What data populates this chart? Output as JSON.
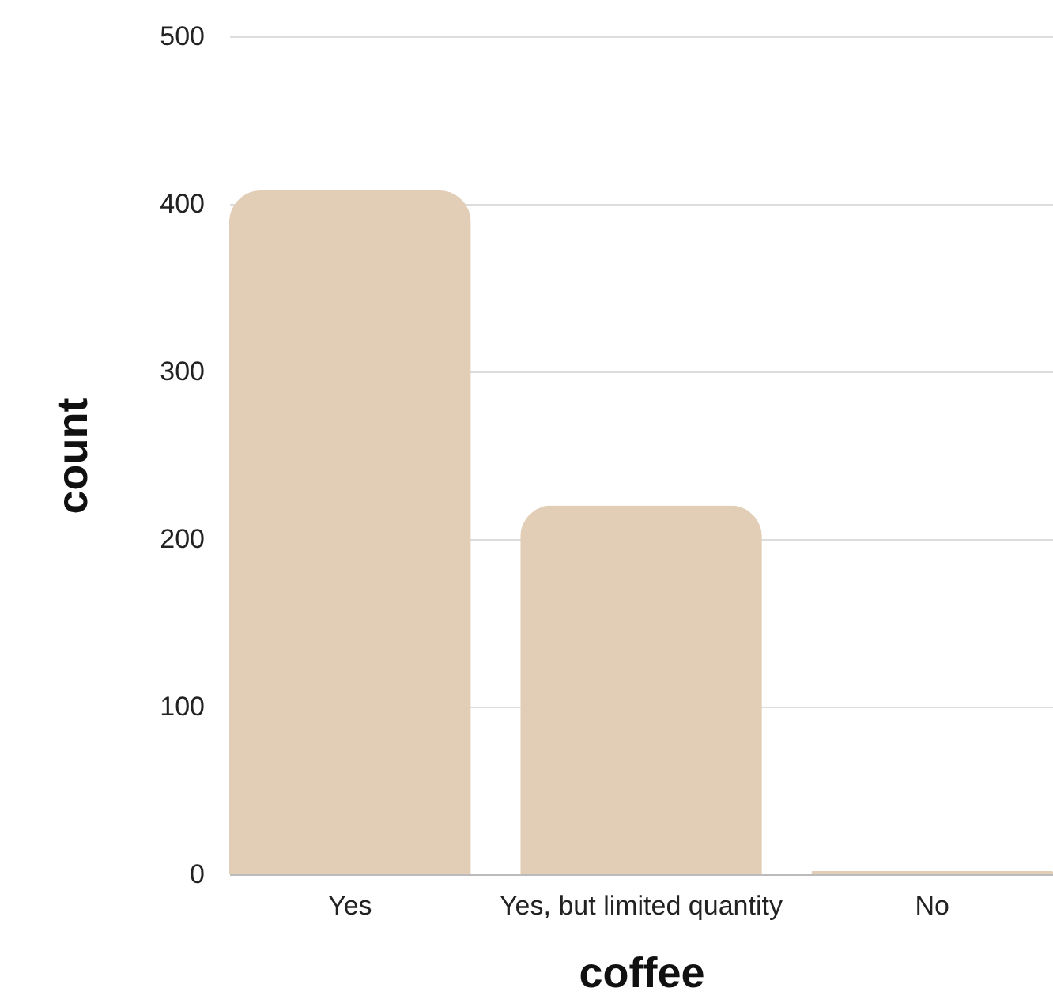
{
  "chart_data": {
    "type": "bar",
    "xlabel": "coffee",
    "ylabel": "count",
    "categories": [
      "Yes",
      "Yes, but limited quantity",
      "No"
    ],
    "values": [
      408,
      220,
      2
    ],
    "color": "#e2cdb6",
    "ylim": [
      0,
      500
    ],
    "yticks": [
      0,
      100,
      200,
      300,
      400,
      500
    ],
    "grid": "y"
  }
}
